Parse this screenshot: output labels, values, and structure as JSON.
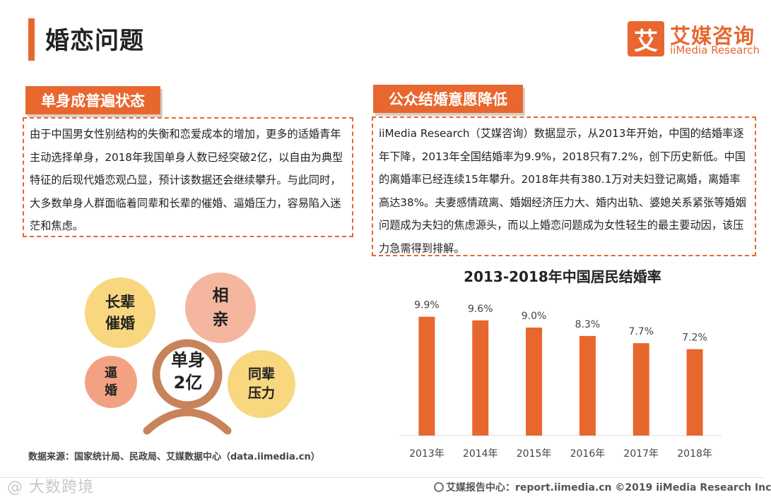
{
  "page_title": "婚恋问题",
  "logo": {
    "mark": "艾",
    "name_cn": "艾媒咨询",
    "name_en": "iiMedia Research"
  },
  "left_section": {
    "tab": "单身成普遍状态",
    "text": "由于中国男女性别结构的失衡和恋爱成本的增加，更多的适婚青年主动选择单身，2018年我国单身人数已经突破2亿，以自由为典型特征的后现代婚恋观凸显，预计该数据还会继续攀升。与此同时，大多数单身人群面临着同辈和长辈的催婚、逼婚压力，容易陷入迷茫和焦虑。"
  },
  "right_section": {
    "tab": "公众结婚意愿降低",
    "text": "iiMedia Research（艾媒咨询）数据显示，从2013年开始，中国的结婚率逐年下降，2013年全国结婚率为9.9%，2018只有7.2%，创下历史新低。中国的离婚率已经连续15年攀升。2018年共有380.1万对夫妇登记离婚，离婚率高达38%。夫妻感情疏离、婚姻经济压力大、婚内出轨、婆媳关系紧张等婚姻问题成为夫妇的焦虑源头，而以上婚恋问题成为女性轻生的最主要动因，该压力急需得到排解。"
  },
  "infographic": {
    "elder_line1": "长辈",
    "elder_line2": "催婚",
    "blind_line1": "相",
    "blind_line2": "亲",
    "force_line1": "逼",
    "force_line2": "婚",
    "peer_line1": "同辈",
    "peer_line2": "压力",
    "center_line1": "单身",
    "center_line2": "2亿",
    "colors": {
      "yellow": "#f9d77e",
      "peach": "#f4b69e",
      "salmon": "#f3a183",
      "person": "#c8835a"
    }
  },
  "source_note": "数据来源：国家统计局、民政局、艾媒数据中心（data.iimedia.cn）",
  "chart_data": {
    "type": "bar",
    "title": "2013-2018年中国居民结婚率",
    "categories": [
      "2013年",
      "2014年",
      "2015年",
      "2016年",
      "2017年",
      "2018年"
    ],
    "values": [
      9.9,
      9.6,
      9.0,
      8.3,
      7.7,
      7.2
    ],
    "value_labels": [
      "9.9%",
      "9.6%",
      "9.0%",
      "8.3%",
      "7.7%",
      "7.2%"
    ],
    "xlabel": "",
    "ylabel": "",
    "ylim": [
      0,
      11
    ],
    "grid": false,
    "bar_color": "#e8672e"
  },
  "footer": {
    "watermark": "@ 大数跨境",
    "text": "艾媒报告中心：report.iimedia.cn  ©2019  iiMedia Research  Inc"
  },
  "accent_color": "#e8672e"
}
